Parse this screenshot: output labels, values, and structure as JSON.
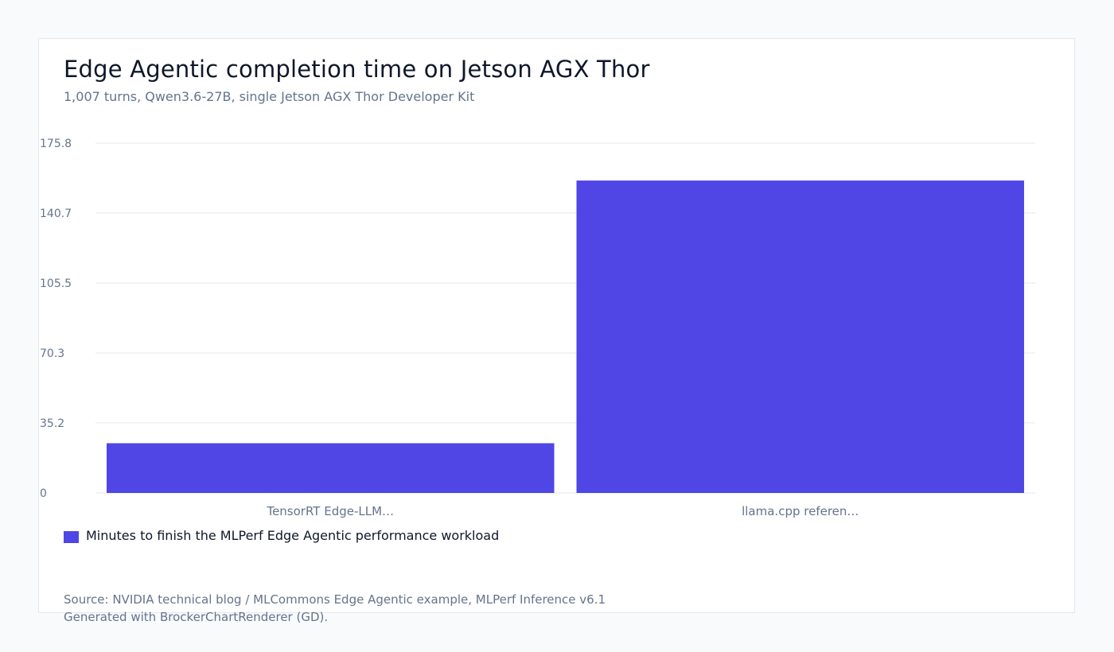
{
  "title": "Edge Agentic completion time on Jetson AGX Thor",
  "subtitle": "1,007 turns, Qwen3.6-27B, single Jetson AGX Thor Developer Kit",
  "source": "Source: NVIDIA technical blog / MLCommons Edge Agentic example, MLPerf Inference v6.1",
  "generated": "Generated with BrockerChartRenderer (GD).",
  "colors": {
    "bar": "#4f46e5",
    "grid": "#e5e7eb",
    "tick_text": "#64748b"
  },
  "chart_data": {
    "type": "bar",
    "categories": [
      "TensorRT Edge-LLM…",
      "llama.cpp referen…"
    ],
    "series": [
      {
        "name": "Minutes to finish the MLPerf Edge Agentic performance workload",
        "values": [
          25,
          157
        ]
      }
    ],
    "yticks": [
      "0",
      "35.2",
      "70.3",
      "105.5",
      "140.7",
      "175.8"
    ],
    "ylim": [
      0,
      175.8
    ],
    "xlabel": "",
    "ylabel": "",
    "grid": true,
    "legend": "bottom-left"
  }
}
